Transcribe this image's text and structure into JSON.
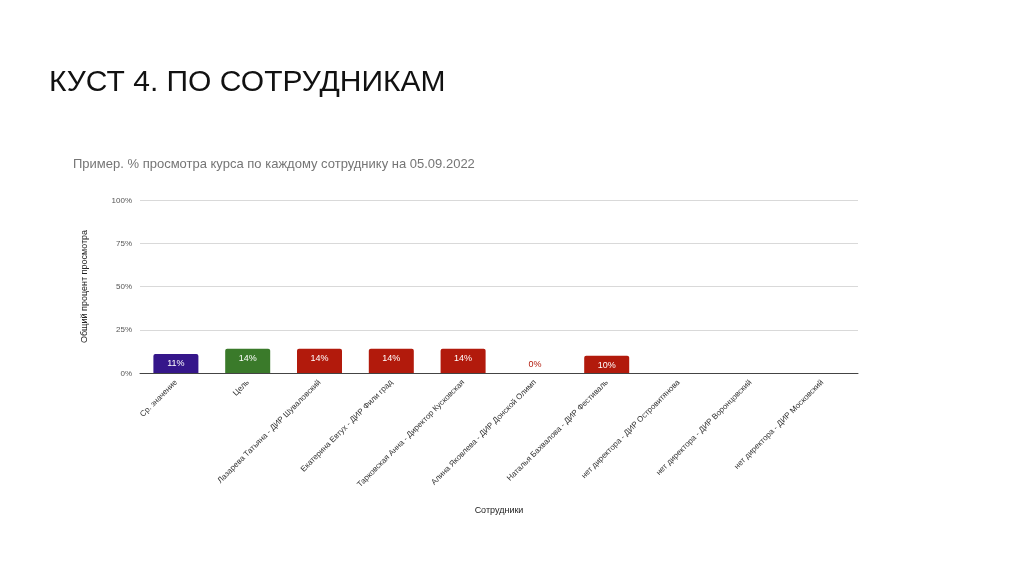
{
  "chart_data": {
    "type": "bar",
    "title": "КУСТ 4. ПО СОТРУДНИКАМ",
    "subtitle": "Пример. % просмотра курса по каждому сотруднику на 05.09.2022",
    "xlabel": "Сотрудники",
    "ylabel": "Общий процент просмотра",
    "categories": [
      "Ср. значение",
      "Цель",
      "Лазарева Татьяна - ДИР Шуваловский",
      "Екатерина Евтух - ДИР Фили град",
      "Тарковская Анна - Директор Кусковская",
      "Алина Яковлева - ДИР Донской Олимп",
      "Наталья Бахвалова - ДИР Фестиваль",
      "нет директора - ДИР Островитянова",
      "нет директора - ДИР Воронцовский",
      "нет директора - ДИР Московский"
    ],
    "values": [
      11,
      14,
      14,
      14,
      14,
      0,
      10,
      null,
      null,
      null
    ],
    "colors": [
      "#35168a",
      "#3a7a2a",
      "#b21a0c",
      "#b21a0c",
      "#b21a0c",
      "#b21a0c",
      "#b21a0c",
      "#b21a0c",
      "#b21a0c",
      "#b21a0c"
    ],
    "value_labels": [
      "11%",
      "14%",
      "14%",
      "14%",
      "14%",
      "0%",
      "10%",
      null,
      null,
      null
    ],
    "ylim": [
      0,
      100
    ],
    "yticks": [
      {
        "value": 0,
        "label": "0%"
      },
      {
        "value": 25,
        "label": "25%"
      },
      {
        "value": 50,
        "label": "50%"
      },
      {
        "value": 75,
        "label": "75%"
      },
      {
        "value": 100,
        "label": "100%"
      }
    ],
    "grid": "y"
  }
}
